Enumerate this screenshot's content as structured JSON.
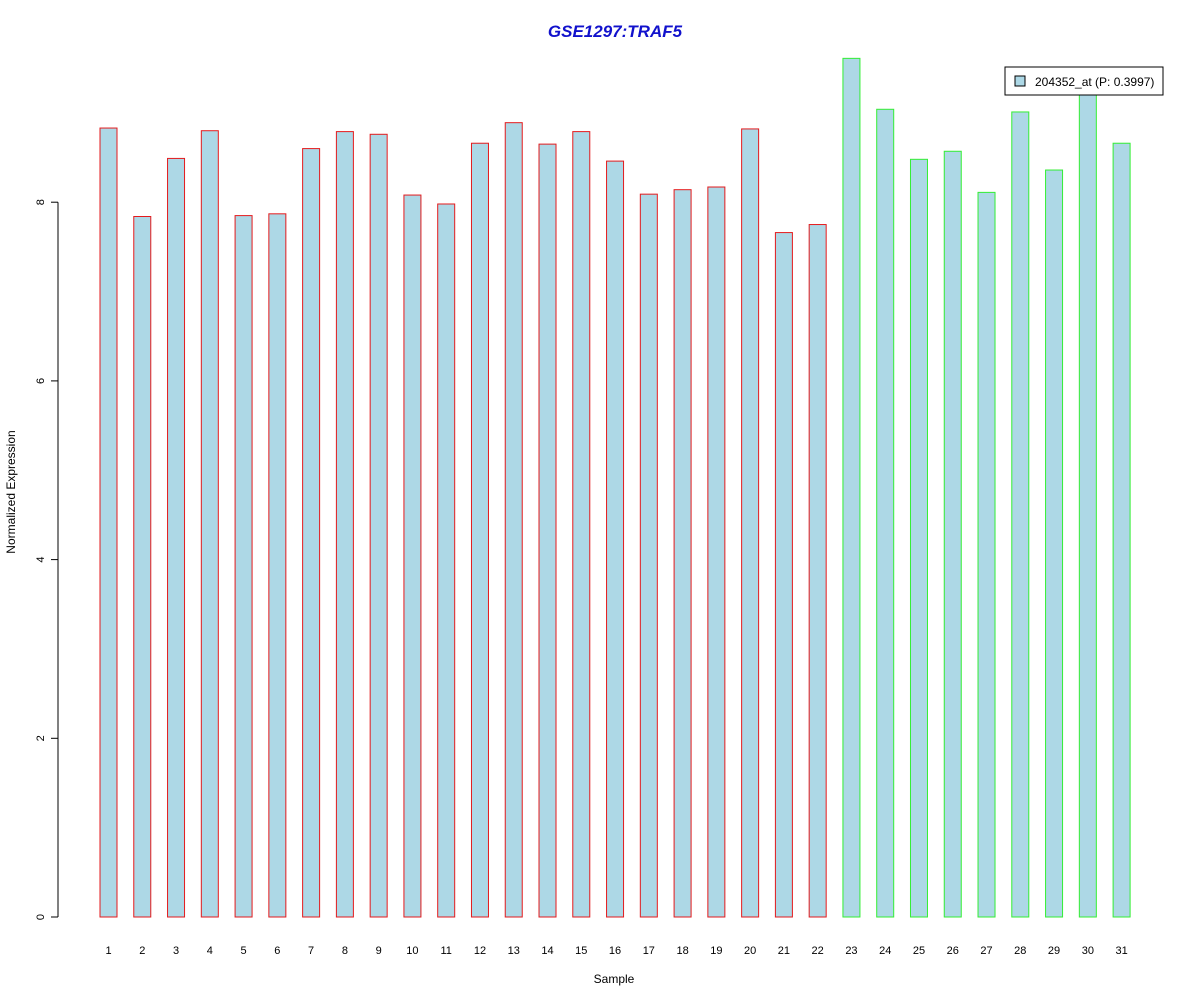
{
  "chart_data": {
    "type": "bar",
    "title": "GSE1297:TRAF5",
    "xlabel": "Sample",
    "ylabel": "Normalized Expression",
    "categories": [
      "1",
      "2",
      "3",
      "4",
      "5",
      "6",
      "7",
      "8",
      "9",
      "10",
      "11",
      "12",
      "13",
      "14",
      "15",
      "16",
      "17",
      "18",
      "19",
      "20",
      "21",
      "22",
      "23",
      "24",
      "25",
      "26",
      "27",
      "28",
      "29",
      "30",
      "31"
    ],
    "series": [
      {
        "name": "204352_at (P: 0.3997)",
        "values": [
          8.83,
          7.84,
          8.49,
          8.8,
          7.85,
          7.87,
          8.6,
          8.79,
          8.76,
          8.08,
          7.98,
          8.66,
          8.89,
          8.65,
          8.79,
          8.46,
          8.09,
          8.14,
          8.17,
          8.82,
          7.66,
          7.75,
          9.61,
          9.04,
          8.48,
          8.57,
          8.11,
          9.01,
          8.36,
          9.22,
          8.66
        ]
      }
    ],
    "group_border_colors": [
      "#e41a1c",
      "#e41a1c",
      "#e41a1c",
      "#e41a1c",
      "#e41a1c",
      "#e41a1c",
      "#e41a1c",
      "#e41a1c",
      "#e41a1c",
      "#e41a1c",
      "#e41a1c",
      "#e41a1c",
      "#e41a1c",
      "#e41a1c",
      "#e41a1c",
      "#e41a1c",
      "#e41a1c",
      "#e41a1c",
      "#e41a1c",
      "#e41a1c",
      "#e41a1c",
      "#e41a1c",
      "#33ee33",
      "#33ee33",
      "#33ee33",
      "#33ee33",
      "#33ee33",
      "#33ee33",
      "#33ee33",
      "#33ee33",
      "#33ee33"
    ],
    "ylim": [
      0,
      9.61
    ],
    "yticks": [
      0,
      2,
      4,
      6,
      8
    ],
    "legend_position": "top-right",
    "grid": false,
    "colors": {
      "title": "#1111cc",
      "bar_fill": "#add8e6",
      "axis": "#000000"
    }
  }
}
